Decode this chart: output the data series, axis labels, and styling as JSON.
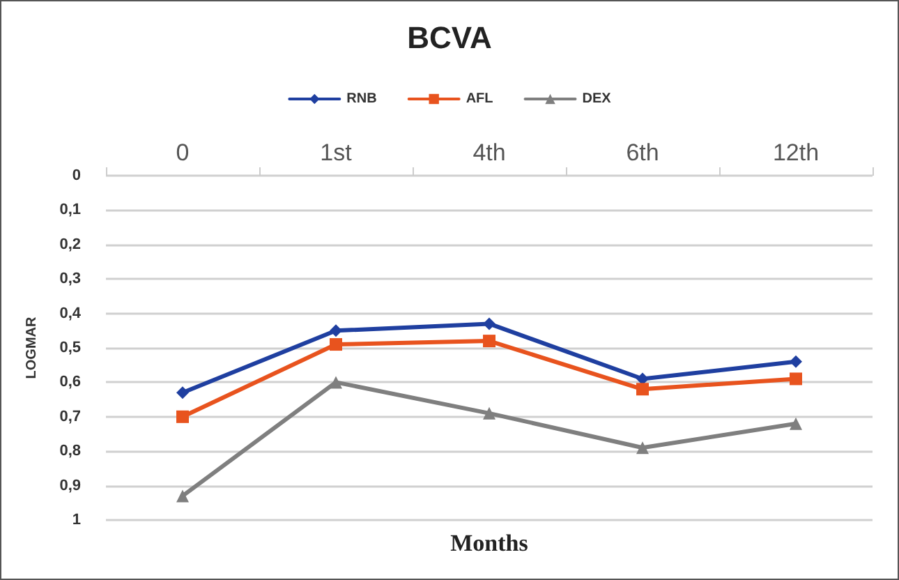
{
  "chart_data": {
    "type": "line",
    "title": "BCVA",
    "xlabel": "Months",
    "ylabel": "LOGMAR",
    "categories": [
      "0",
      "1st",
      "4th",
      "6th",
      "12th"
    ],
    "series": [
      {
        "name": "RNB",
        "color": "#1f3fa0",
        "marker": "diamond",
        "values": [
          0.63,
          0.45,
          0.43,
          0.59,
          0.54
        ]
      },
      {
        "name": "AFL",
        "color": "#e8531e",
        "marker": "square",
        "values": [
          0.7,
          0.49,
          0.48,
          0.62,
          0.59
        ]
      },
      {
        "name": "DEX",
        "color": "#7f7f7f",
        "marker": "triangle",
        "values": [
          0.93,
          0.6,
          0.69,
          0.79,
          0.72
        ]
      }
    ],
    "ylim": [
      1,
      0
    ],
    "yticks": [
      {
        "value": 0,
        "label": "0"
      },
      {
        "value": 0.1,
        "label": "0,1"
      },
      {
        "value": 0.2,
        "label": "0,2"
      },
      {
        "value": 0.3,
        "label": "0,3"
      },
      {
        "value": 0.4,
        "label": "0,4"
      },
      {
        "value": 0.5,
        "label": "0,5"
      },
      {
        "value": 0.6,
        "label": "0,6"
      },
      {
        "value": 0.7,
        "label": "0,7"
      },
      {
        "value": 0.8,
        "label": "0,8"
      },
      {
        "value": 0.9,
        "label": "0,9"
      },
      {
        "value": 1,
        "label": "1"
      }
    ],
    "grid": "y",
    "legend": "top",
    "line_style": "solid"
  }
}
